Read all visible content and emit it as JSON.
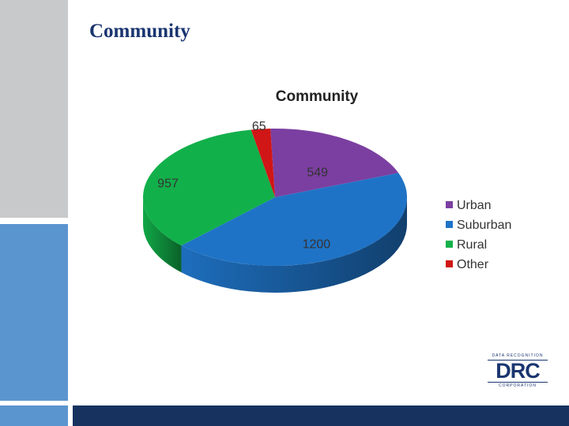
{
  "slide": {
    "title": "Community"
  },
  "logo": {
    "tagline_top": "DATA RECOGNITION",
    "mark": "DRC",
    "tagline_bottom": "CORPORATION"
  },
  "colors": {
    "urban": "#7b3fa1",
    "suburban": "#1f73c6",
    "rural": "#12b04a",
    "other": "#d01616",
    "navy": "#17325f",
    "side_gray": "#c8c9cb",
    "side_blue": "#5b95cf"
  },
  "chart_data": {
    "type": "pie",
    "title": "Community",
    "categories": [
      "Urban",
      "Suburban",
      "Rural",
      "Other"
    ],
    "values": [
      549,
      1200,
      957,
      65
    ],
    "labels": [
      "549",
      "1200",
      "957",
      "65"
    ],
    "legend_position": "right",
    "three_d": true
  }
}
